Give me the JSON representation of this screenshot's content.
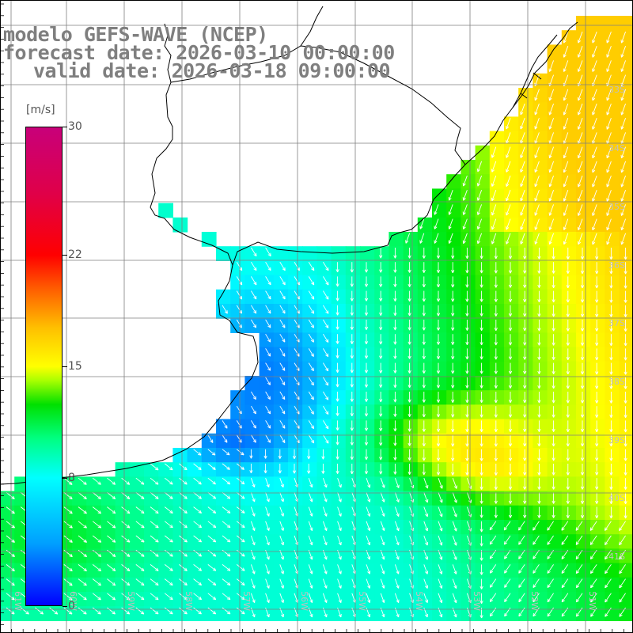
{
  "title": {
    "line1": "modelo GEFS-WAVE (NCEP)",
    "line2": "forecast date: 2026-03-10 00:00:00",
    "line3": "valid date: 2026-03-18 09:00:00"
  },
  "colorbar": {
    "unit": "[m/s]",
    "min": 0,
    "max": 30,
    "ticks": [
      "0",
      "8",
      "15",
      "22",
      "30"
    ],
    "tick_values": [
      0,
      8,
      15,
      22,
      30
    ]
  },
  "map": {
    "lon_labels": [
      "61W",
      "60W",
      "59W",
      "58W",
      "57W",
      "56W",
      "55W",
      "54W",
      "53W",
      "52W",
      "51W"
    ],
    "lat_labels": [
      "33S",
      "34S",
      "35S",
      "36S",
      "37S",
      "38S",
      "39S",
      "40S",
      "41S"
    ],
    "colors": {
      "land": "#ffffff",
      "coastline": "#000000",
      "grid": "#7f7f7f",
      "arrows": "#ffffff",
      "labels": "#bfbfbf",
      "title": "#7f7f7f"
    }
  }
}
